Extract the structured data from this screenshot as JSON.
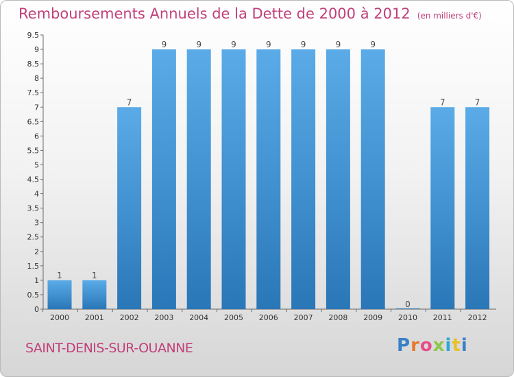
{
  "title": "Remboursements Annuels de la Dette de 2000 à 2012",
  "subtitle": "(en milliers d'€)",
  "commune": "SAINT-DENIS-SUR-OUANNE",
  "brand": "Proxiti",
  "colors": {
    "title": "#c0407a",
    "bar_top": "#5aabe8",
    "bar_bottom": "#2a77b8",
    "brand_letters": [
      "#3a80c8",
      "#e8792a",
      "#e84c8a",
      "#8cc84a",
      "#2aa8d8",
      "#e8c02a",
      "#3a80c8"
    ]
  },
  "chart_data": {
    "type": "bar",
    "categories": [
      "2000",
      "2001",
      "2002",
      "2003",
      "2004",
      "2005",
      "2006",
      "2007",
      "2008",
      "2009",
      "2010",
      "2011",
      "2012"
    ],
    "values": [
      1,
      1,
      7,
      9,
      9,
      9,
      9,
      9,
      9,
      9,
      0,
      7,
      7
    ],
    "value_labels": [
      "1",
      "1",
      "7",
      "9",
      "9",
      "9",
      "9",
      "9",
      "9",
      "9",
      "0",
      "7",
      "7"
    ],
    "yticks": [
      "0",
      "0.5",
      "1",
      "1.5",
      "2",
      "2.5",
      "3",
      "3.5",
      "4",
      "4.5",
      "5",
      "5.5",
      "6",
      "6.5",
      "7",
      "7.5",
      "8",
      "8.5",
      "9",
      "9.5"
    ],
    "ylim": [
      0,
      9.5
    ],
    "xlabel": "",
    "ylabel": "",
    "grid": false
  }
}
